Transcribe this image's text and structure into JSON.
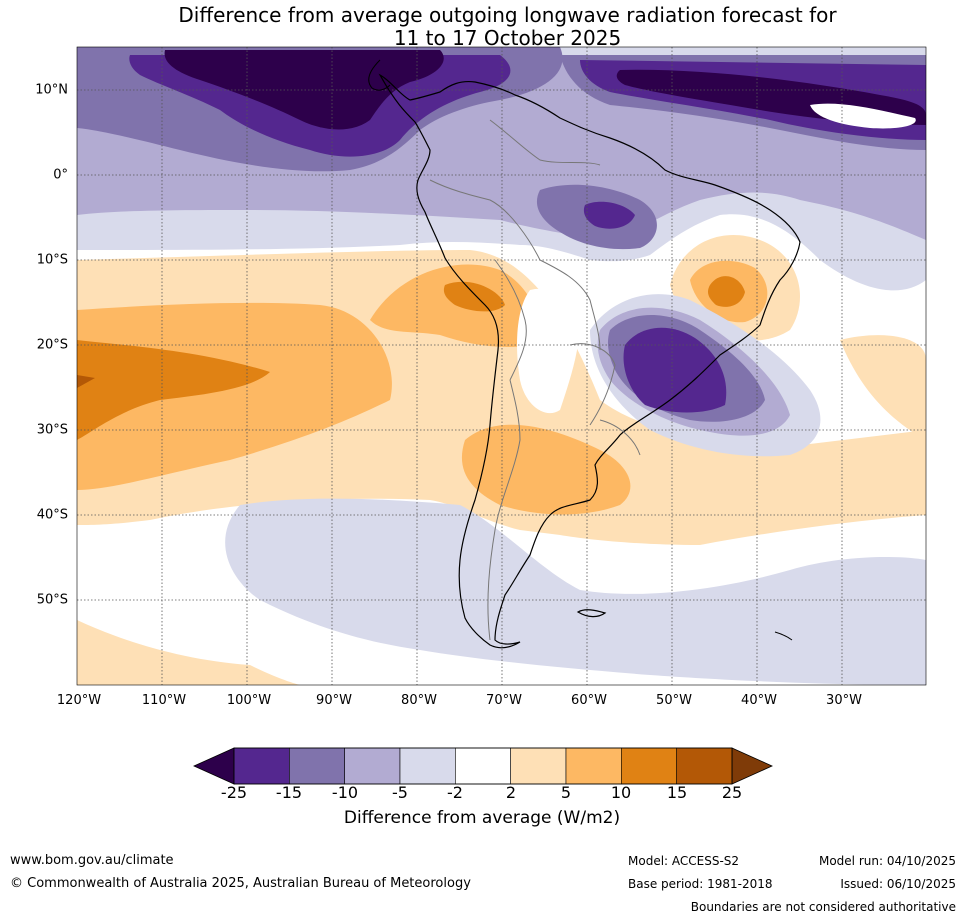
{
  "title": {
    "line1": "Difference from average outgoing longwave radiation forecast for",
    "line2": "11 to 17 October 2025"
  },
  "map": {
    "lon_labels": [
      "120°W",
      "110°W",
      "100°W",
      "90°W",
      "80°W",
      "70°W",
      "60°W",
      "50°W",
      "40°W",
      "30°W"
    ],
    "lat_labels": [
      "10°N",
      "0°",
      "10°S",
      "20°S",
      "30°S",
      "40°S",
      "50°S"
    ]
  },
  "colorbar": {
    "ticks": [
      "-25",
      "-15",
      "-10",
      "-5",
      "-2",
      "2",
      "5",
      "10",
      "15",
      "25"
    ],
    "colors": [
      "#54278f",
      "#8073ac",
      "#b2abd2",
      "#d8daeb",
      "#ffffff",
      "#fee0b6",
      "#fdb863",
      "#e08214",
      "#b35806"
    ],
    "under_color": "#2d004b",
    "over_color": "#7f3b08",
    "label": "Difference from average (W/m2)"
  },
  "footer": {
    "website": "www.bom.gov.au/climate",
    "copyright": "© Commonwealth of Australia 2025, Australian Bureau of Meteorology",
    "model": "Model: ACCESS-S2",
    "base_period": "Base period: 1981-2018",
    "model_run": "Model run: 04/10/2025",
    "issued": "Issued: 06/10/2025",
    "disclaimer": "Boundaries are not considered authoritative"
  }
}
